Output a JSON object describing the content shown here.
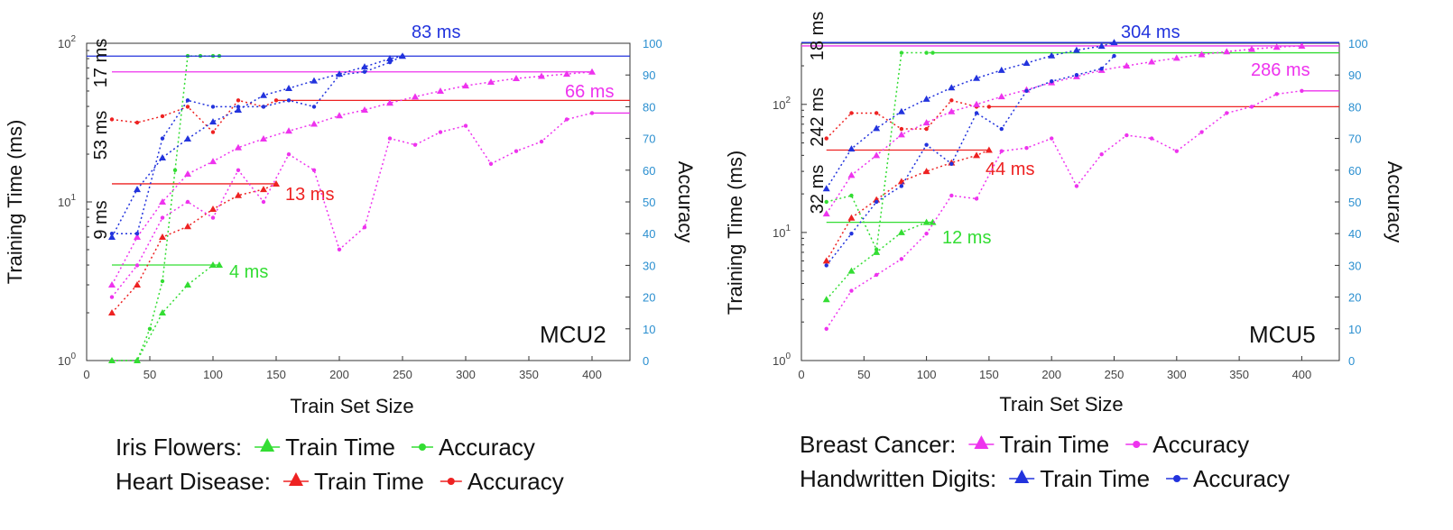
{
  "colors": {
    "iris": "#33dd33",
    "heart": "#ee2222",
    "breast": "#ee33ee",
    "digits": "#2233dd",
    "axis_right": "#2a8fd0"
  },
  "legend_left": [
    {
      "dataset": "Iris Flowers:",
      "train": "Train Time",
      "acc": "Accuracy",
      "color": "#33dd33"
    },
    {
      "dataset": "Heart Disease:",
      "train": "Train Time",
      "acc": "Accuracy",
      "color": "#ee2222"
    }
  ],
  "legend_right": [
    {
      "dataset": "Breast Cancer:",
      "train": "Train Time",
      "acc": "Accuracy",
      "color": "#ee33ee"
    },
    {
      "dataset": "Handwritten Digits:",
      "train": "Train Time",
      "acc": "Accuracy",
      "color": "#2233dd"
    }
  ],
  "chart_data": [
    {
      "type": "line",
      "panel_label": "MCU2",
      "xlabel": "Train Set Size",
      "ylabel": "Training Time (ms)",
      "y2label": "Accuracy",
      "xlim": [
        0,
        430
      ],
      "ylim": [
        1,
        100
      ],
      "yscale": "log",
      "y2lim": [
        0,
        100
      ],
      "xticks": [
        "0",
        "50",
        "100",
        "150",
        "200",
        "250",
        "300",
        "350",
        "400"
      ],
      "yticks": [
        "10^0",
        "10^1",
        "10^2"
      ],
      "y2ticks": [
        "0",
        "10",
        "20",
        "30",
        "40",
        "50",
        "60",
        "70",
        "80",
        "90",
        "100"
      ],
      "series": [
        {
          "name": "Iris Flowers Train Time",
          "color": "#33dd33",
          "axis": "left",
          "marker": "triangle",
          "x": [
            20,
            40,
            60,
            80,
            100,
            105
          ],
          "y": [
            1,
            1,
            2,
            3,
            4,
            4
          ],
          "ref": 4,
          "ref_x": [
            20,
            105
          ],
          "ref_label": "4 ms"
        },
        {
          "name": "Iris Flowers Accuracy",
          "color": "#33dd33",
          "axis": "right",
          "marker": "circle",
          "x": [
            20,
            40,
            50,
            60,
            70,
            80,
            90,
            100,
            105
          ],
          "y": [
            0,
            0,
            10,
            25,
            60,
            96,
            96,
            96,
            96
          ]
        },
        {
          "name": "Heart Disease Train Time",
          "color": "#ee2222",
          "axis": "left",
          "marker": "triangle",
          "x": [
            20,
            40,
            60,
            80,
            100,
            120,
            140,
            150
          ],
          "y": [
            2,
            3,
            6,
            7,
            9,
            11,
            12,
            13
          ],
          "ref": 13,
          "ref_x": [
            20,
            150
          ],
          "ref_label": "13 ms"
        },
        {
          "name": "Heart Disease Accuracy",
          "color": "#ee2222",
          "axis": "right",
          "marker": "circle",
          "x": [
            20,
            40,
            60,
            80,
            100,
            120,
            140,
            150
          ],
          "y": [
            76,
            75,
            77,
            80,
            72,
            82,
            80,
            82
          ],
          "ref": 82,
          "ref_x": [
            150,
            430
          ]
        },
        {
          "name": "Breast Cancer Train Time",
          "color": "#ee33ee",
          "axis": "left",
          "marker": "triangle",
          "x": [
            20,
            40,
            60,
            80,
            100,
            120,
            140,
            160,
            180,
            200,
            220,
            240,
            260,
            280,
            300,
            320,
            340,
            360,
            380,
            400
          ],
          "y": [
            3,
            6,
            10,
            15,
            18,
            22,
            25,
            28,
            31,
            35,
            38,
            42,
            46,
            50,
            54,
            57,
            60,
            62,
            64,
            66
          ],
          "ref": 66,
          "ref_x": [
            20,
            400
          ],
          "ref_label": "66 ms"
        },
        {
          "name": "Breast Cancer Accuracy",
          "color": "#ee33ee",
          "axis": "right",
          "marker": "circle",
          "x": [
            20,
            40,
            60,
            80,
            100,
            120,
            140,
            160,
            180,
            200,
            220,
            240,
            260,
            280,
            300,
            320,
            340,
            360,
            380,
            400
          ],
          "y": [
            20,
            30,
            45,
            50,
            45,
            60,
            50,
            65,
            60,
            35,
            42,
            70,
            68,
            72,
            74,
            62,
            66,
            69,
            76,
            78
          ],
          "ref": 78,
          "ref_x": [
            400,
            430
          ]
        },
        {
          "name": "Handwritten Digits Train Time",
          "color": "#2233dd",
          "axis": "left",
          "marker": "triangle",
          "x": [
            20,
            40,
            60,
            80,
            100,
            120,
            140,
            160,
            180,
            200,
            220,
            240,
            250
          ],
          "y": [
            6,
            12,
            19,
            25,
            32,
            38,
            47,
            52,
            58,
            64,
            71,
            80,
            83
          ],
          "ref": 83,
          "ref_x": [
            0,
            430
          ],
          "ref_label": "83 ms"
        },
        {
          "name": "Handwritten Digits Accuracy",
          "color": "#2233dd",
          "axis": "right",
          "marker": "circle",
          "x": [
            20,
            40,
            60,
            80,
            100,
            120,
            140,
            160,
            180,
            200,
            220,
            240,
            250
          ],
          "y": [
            40,
            40,
            70,
            82,
            80,
            80,
            80,
            82,
            80,
            90,
            91,
            94,
            96
          ]
        }
      ],
      "side_labels": [
        "17 ms",
        "53 ms",
        "9 ms"
      ]
    },
    {
      "type": "line",
      "panel_label": "MCU5",
      "xlabel": "Train Set Size",
      "ylabel": "Training Time (ms)",
      "y2label": "Accuracy",
      "xlim": [
        0,
        430
      ],
      "ylim": [
        1,
        300
      ],
      "yscale": "log",
      "y2lim": [
        0,
        100
      ],
      "xticks": [
        "0",
        "50",
        "100",
        "150",
        "200",
        "250",
        "300",
        "350",
        "400"
      ],
      "yticks": [
        "10^0",
        "10^1",
        "10^2"
      ],
      "y2ticks": [
        "0",
        "10",
        "20",
        "30",
        "40",
        "50",
        "60",
        "70",
        "80",
        "90",
        "100"
      ],
      "series": [
        {
          "name": "Iris Flowers Train Time",
          "color": "#33dd33",
          "axis": "left",
          "marker": "triangle",
          "x": [
            20,
            40,
            60,
            80,
            100,
            105
          ],
          "y": [
            3,
            5,
            7,
            10,
            12,
            12
          ],
          "ref": 12,
          "ref_x": [
            20,
            105
          ],
          "ref_label": "12 ms"
        },
        {
          "name": "Iris Flowers Accuracy",
          "color": "#33dd33",
          "axis": "right",
          "marker": "circle",
          "x": [
            20,
            40,
            60,
            80,
            100,
            105
          ],
          "y": [
            50,
            52,
            35,
            97,
            97,
            97
          ],
          "ref": 97,
          "ref_x": [
            105,
            430
          ]
        },
        {
          "name": "Heart Disease Train Time",
          "color": "#ee2222",
          "axis": "left",
          "marker": "triangle",
          "x": [
            20,
            40,
            60,
            80,
            100,
            120,
            140,
            150
          ],
          "y": [
            6,
            13,
            18,
            25,
            30,
            35,
            40,
            44
          ],
          "ref": 44,
          "ref_x": [
            20,
            150
          ],
          "ref_label": "44 ms"
        },
        {
          "name": "Heart Disease Accuracy",
          "color": "#ee2222",
          "axis": "right",
          "marker": "circle",
          "x": [
            20,
            40,
            60,
            80,
            100,
            120,
            140,
            150
          ],
          "y": [
            70,
            78,
            78,
            73,
            73,
            82,
            80,
            80
          ],
          "ref": 80,
          "ref_x": [
            150,
            430
          ]
        },
        {
          "name": "Breast Cancer Train Time",
          "color": "#ee33ee",
          "axis": "left",
          "marker": "triangle",
          "x": [
            20,
            40,
            60,
            80,
            100,
            120,
            140,
            160,
            180,
            200,
            220,
            240,
            260,
            280,
            300,
            320,
            340,
            360,
            380,
            400
          ],
          "y": [
            14,
            28,
            40,
            58,
            72,
            88,
            100,
            115,
            130,
            148,
            165,
            185,
            200,
            215,
            230,
            245,
            258,
            270,
            280,
            286
          ],
          "ref": 286,
          "ref_x": [
            0,
            430
          ],
          "ref_label": "286 ms"
        },
        {
          "name": "Breast Cancer Accuracy",
          "color": "#ee33ee",
          "axis": "right",
          "marker": "circle",
          "x": [
            20,
            40,
            60,
            80,
            100,
            120,
            140,
            160,
            180,
            200,
            220,
            240,
            260,
            280,
            300,
            320,
            340,
            360,
            380,
            400
          ],
          "y": [
            10,
            22,
            27,
            32,
            40,
            52,
            51,
            66,
            67,
            70,
            55,
            65,
            71,
            70,
            66,
            72,
            78,
            80,
            84,
            85
          ],
          "ref": 85,
          "ref_x": [
            400,
            430
          ]
        },
        {
          "name": "Handwritten Digits Train Time",
          "color": "#2233dd",
          "axis": "left",
          "marker": "triangle",
          "x": [
            20,
            40,
            60,
            80,
            100,
            120,
            140,
            160,
            180,
            200,
            220,
            240,
            250
          ],
          "y": [
            22,
            45,
            65,
            88,
            110,
            135,
            160,
            185,
            210,
            240,
            265,
            285,
            304
          ],
          "ref": 304,
          "ref_x": [
            0,
            430
          ],
          "ref_label": "304 ms"
        },
        {
          "name": "Handwritten Digits Accuracy",
          "color": "#2233dd",
          "axis": "right",
          "marker": "circle",
          "x": [
            20,
            40,
            60,
            80,
            100,
            120,
            140,
            160,
            180,
            200,
            220,
            240,
            250
          ],
          "y": [
            30,
            40,
            50,
            55,
            68,
            62,
            78,
            73,
            85,
            88,
            90,
            92,
            96
          ]
        }
      ],
      "side_labels": [
        "18 ms",
        "242 ms",
        "32 ms"
      ]
    }
  ]
}
